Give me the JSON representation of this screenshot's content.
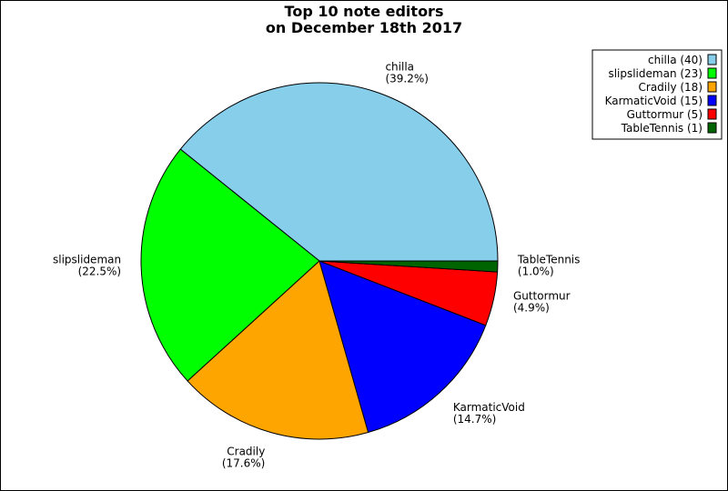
{
  "chart_data": {
    "type": "pie",
    "title": "Top 10 note editors",
    "subtitle": "on December 18th 2017",
    "slices": [
      {
        "name": "chilla",
        "value": 40,
        "percent_label": "(39.2%)",
        "legend_label": "chilla (40)",
        "color": "#87ceeb"
      },
      {
        "name": "slipslideman",
        "value": 23,
        "percent_label": "(22.5%)",
        "legend_label": "slipslideman (23)",
        "color": "#00ff00"
      },
      {
        "name": "Cradily",
        "value": 18,
        "percent_label": "(17.6%)",
        "legend_label": "Cradily (18)",
        "color": "#ffa500"
      },
      {
        "name": "KarmaticVoid",
        "value": 15,
        "percent_label": "(14.7%)",
        "legend_label": "KarmaticVoid (15)",
        "color": "#0000ff"
      },
      {
        "name": "Guttormur",
        "value": 5,
        "percent_label": "(4.9%)",
        "legend_label": "Guttormur (5)",
        "color": "#ff0000"
      },
      {
        "name": "TableTennis",
        "value": 1,
        "percent_label": "(1.0%)",
        "legend_label": "TableTennis (1)",
        "color": "#006400"
      }
    ],
    "start_angle_deg": 0,
    "direction": "counterclockwise",
    "legend_position": "top-right"
  }
}
